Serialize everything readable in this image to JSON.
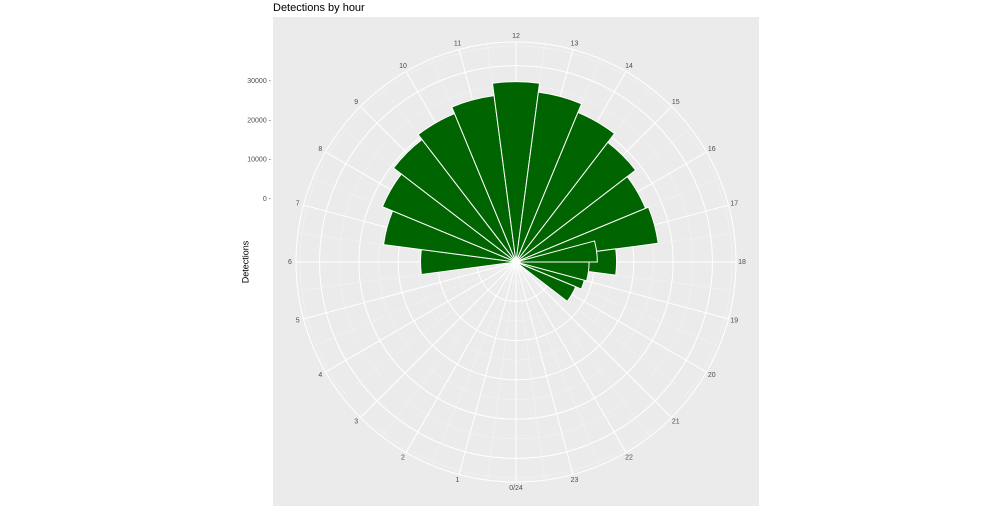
{
  "chart_data": {
    "type": "bar",
    "coord": "polar",
    "title": "Detections by hour",
    "xlabel": "",
    "ylabel": "Detections",
    "y_ticks": [
      0,
      10000,
      20000,
      30000
    ],
    "y_tick_labels": [
      "0",
      "10000",
      "20000",
      "30000"
    ],
    "ylim": [
      -16000,
      40000
    ],
    "categories": [
      6,
      7,
      8,
      9,
      10,
      11,
      12,
      13,
      14,
      15,
      16,
      17,
      18,
      19,
      20,
      21,
      22,
      23,
      0,
      1,
      2,
      3,
      4,
      5
    ],
    "hour_labels": [
      "0/24",
      "1",
      "2",
      "3",
      "4",
      "5",
      "6",
      "7",
      "8",
      "9",
      "10",
      "11",
      "12",
      "13",
      "14",
      "15",
      "16",
      "17",
      "18",
      "19",
      "20",
      "21",
      "22",
      "23"
    ],
    "series": [
      {
        "values": [
          8300,
          18000,
          20800,
          23300,
          24900,
          26700,
          29900,
          27600,
          25200,
          22400,
          19700,
          20500,
          9600,
          2000,
          450,
          0,
          0,
          0,
          0,
          0,
          0,
          0,
          0,
          0
        ],
        "also_values_below_zero": [
          0,
          0,
          0,
          0,
          0,
          0,
          0,
          0,
          0,
          0,
          0,
          0,
          0,
          0,
          0,
          0,
          0,
          0,
          0,
          0,
          0,
          0,
          0,
          0
        ]
      }
    ],
    "extra_bars": [
      {
        "hour": 17.5,
        "value": 4700
      },
      {
        "hour": 18.5,
        "value": 2600
      }
    ],
    "bar_color": "#006400",
    "panel_background": "#ebebeb",
    "grid": true
  }
}
